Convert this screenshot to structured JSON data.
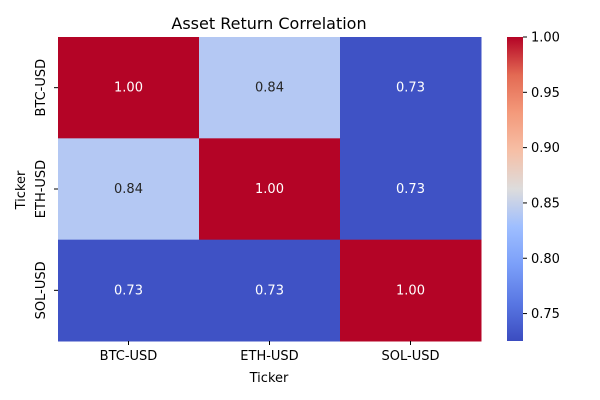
{
  "chart_data": {
    "type": "heatmap",
    "title": "Asset Return Correlation",
    "xlabel": "Ticker",
    "ylabel": "Ticker",
    "x_categories": [
      "BTC-USD",
      "ETH-USD",
      "SOL-USD"
    ],
    "y_categories": [
      "BTC-USD",
      "ETH-USD",
      "SOL-USD"
    ],
    "values": [
      [
        1.0,
        0.84,
        0.73
      ],
      [
        0.84,
        1.0,
        0.73
      ],
      [
        0.73,
        0.73,
        1.0
      ]
    ],
    "value_labels": [
      [
        "1.00",
        "0.84",
        "0.73"
      ],
      [
        "0.84",
        "1.00",
        "0.73"
      ],
      [
        "0.73",
        "0.73",
        "1.00"
      ]
    ],
    "colormap": "coolwarm",
    "colorbar": {
      "range": [
        0.7252,
        1.0
      ],
      "ticks": [
        0.75,
        0.8,
        0.85,
        0.9,
        0.95,
        1.0
      ],
      "tick_labels": [
        "0.75",
        "0.80",
        "0.85",
        "0.90",
        "0.95",
        "1.00"
      ]
    }
  }
}
